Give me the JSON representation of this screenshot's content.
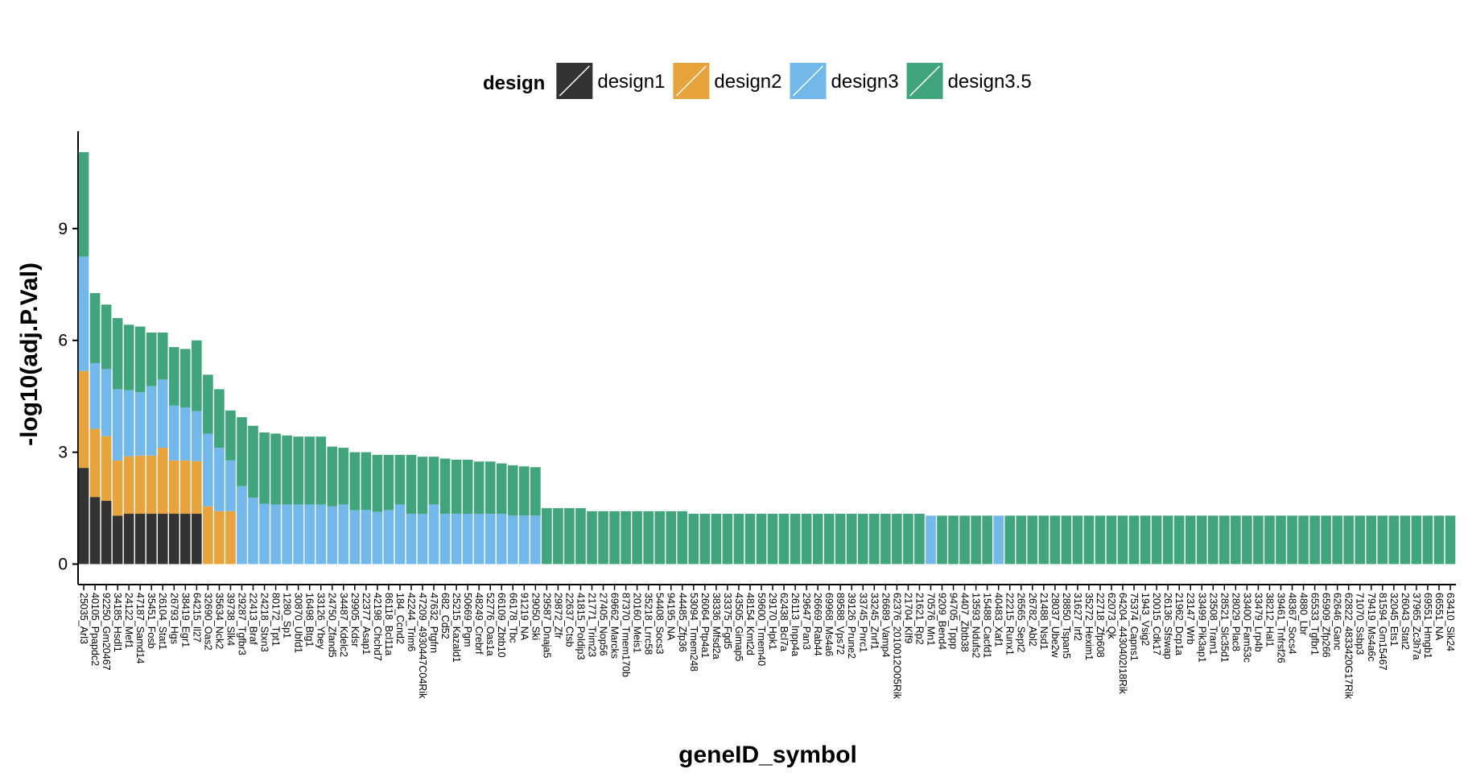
{
  "chart_data": {
    "type": "stacked_bar",
    "x_label": "geneID_symbol",
    "y_label": "-log10(adj.P.Val)",
    "legend_title": "design",
    "legend_position": "top",
    "ylim": [
      -0.55,
      11.61
    ],
    "yticks": [
      0,
      3,
      6,
      9
    ],
    "grid": false,
    "categories": [
      "25035_Arl3",
      "40105_Ppapdc2",
      "92250_Gm20467",
      "34185_Hsdl1",
      "24122_Mef1",
      "47187_Samd14",
      "35451_Fosb",
      "26104_Stat1",
      "26793_Hgs",
      "38419_Egr1",
      "64215_Il27",
      "32690_Oas2",
      "35634_Nck2",
      "39738_Slk4",
      "29287_Tgfbr3",
      "22413_Braf",
      "24218_Stxn3",
      "80172_Tpt1",
      "1280_Sp1",
      "30870_Ubfd1",
      "16498_Btg1",
      "33126_Ybey",
      "24750_Zfand5",
      "34487_Kdelc2",
      "29905_Kdsr",
      "22377_Asap1",
      "42198_Chchd7",
      "86118_Bcl11a",
      "184_Ccnd2",
      "42244_Trim6",
      "47209_4930447C04Rik",
      "47632_Ptgfrn",
      "682_Cd52",
      "25215_Kazald1",
      "50669_Pgm",
      "48249_Crebrf",
      "52776_Oas1a",
      "66109_Zbtb10",
      "66178_Tbc",
      "91219_NA",
      "29050_Ski",
      "29587_Dnaja5",
      "29872_Zfr",
      "22637_Ctsb",
      "41815_Poldip3",
      "21771_Trim23",
      "27405_Nop56",
      "69662_Marcks",
      "87370_Tmem170b",
      "20160_Meis1",
      "35218_Lrrc58",
      "54408_Socs3",
      "94195_NA",
      "44485_Zfp36",
      "53094_Tmem248",
      "26064_Ptp4a1",
      "38336_Mfsd2a",
      "33375_Fgd5",
      "43505_Gimap5",
      "48154_Kmt2d",
      "59600_Tmem40",
      "29170_Hpk1",
      "62438_Bcl7a",
      "26113_Inpp4a",
      "29647_Pan3",
      "26669_Rab44",
      "69968_Ms4a6",
      "89588_Vps72",
      "39126_Prune2",
      "33745_Pnrc1",
      "33245_Znrf1",
      "26689_Vamp4",
      "62376_2010012O05Rik",
      "21704_Klf9",
      "21621_Rp2",
      "70576_Mn1",
      "9209_Bend4",
      "94705_Tppp",
      "4407_Zbtb38",
      "13593_Ndufs2",
      "15488_Cacfd1",
      "40483_Xaf1",
      "22215_Runx1",
      "26565_Sept2",
      "26782_Abl2",
      "21488_Nsd1",
      "28037_Ube2w",
      "28850_Tspan5",
      "31627_Irf2",
      "35272_Hexim1",
      "22718_Zfp608",
      "62073_Qk",
      "64204_4430402I18Rik",
      "75374_Capns1",
      "1943_Vsig2",
      "20015_Cdk17",
      "26136_Sfswap",
      "21962_Dcp1a",
      "23147_Wrb",
      "33499_Pik3ap1",
      "23508_Tram1",
      "28521_Slc35d1",
      "28029_Plac8",
      "33400_Fam53c",
      "33479_Lrp4b",
      "38212_Hal1",
      "39461_Tnfrsf26",
      "48367_Socs4",
      "4880_Lbr",
      "65533_Tgfbr1",
      "65909_Zfp266",
      "62646_Ganc",
      "62822_4833420G17Rik",
      "71070_Ssbp3",
      "79419_Ms4a6c",
      "81594_Gm15467",
      "32045_Ets1",
      "26043_Stat2",
      "37965_Zc3h7a",
      "69551_Hmgb1",
      "66551_NA",
      "63410_Sik24"
    ],
    "series": [
      {
        "name": "design1",
        "color": "#333333",
        "values": [
          2.58,
          1.8,
          1.7,
          1.3,
          1.35,
          1.35,
          1.35,
          1.35,
          1.35,
          1.35,
          1.35,
          null,
          null,
          null,
          null,
          null,
          null,
          null,
          null,
          null,
          null,
          null,
          null,
          null,
          null,
          null,
          null,
          null,
          null,
          null,
          null,
          null,
          null,
          null,
          null,
          null,
          null,
          null,
          null,
          null,
          null,
          null,
          null,
          null,
          null,
          null,
          null,
          null,
          null,
          null,
          null,
          null,
          null,
          null,
          null,
          null,
          null,
          null,
          null,
          null,
          null,
          null,
          null,
          null,
          null,
          null,
          null,
          null,
          null,
          null,
          null,
          null,
          null,
          null,
          null,
          null,
          null,
          null,
          null,
          null,
          null,
          null,
          null,
          null,
          null,
          null,
          null,
          null,
          null,
          null,
          null,
          null,
          null,
          null,
          null,
          null,
          null,
          null,
          null,
          null,
          null,
          null,
          null,
          null,
          null,
          null,
          null,
          null,
          null,
          null,
          null,
          null,
          null,
          null,
          null,
          null,
          null,
          null,
          null,
          null,
          null,
          null
        ]
      },
      {
        "name": "design2",
        "color": "#E8A43C",
        "values": [
          2.6,
          1.83,
          1.73,
          1.48,
          1.54,
          1.56,
          1.56,
          1.77,
          1.43,
          1.43,
          1.41,
          1.55,
          1.42,
          1.42,
          null,
          null,
          null,
          null,
          null,
          null,
          null,
          null,
          null,
          null,
          null,
          null,
          null,
          null,
          null,
          null,
          null,
          null,
          null,
          null,
          null,
          null,
          null,
          null,
          null,
          null,
          null,
          null,
          null,
          null,
          null,
          null,
          null,
          null,
          null,
          null,
          null,
          null,
          null,
          null,
          null,
          null,
          null,
          null,
          null,
          null,
          null,
          null,
          null,
          null,
          null,
          null,
          null,
          null,
          null,
          null,
          null,
          null,
          null,
          null,
          null,
          null,
          null,
          null,
          null,
          null,
          null,
          null,
          null,
          null,
          null,
          null,
          null,
          null,
          null,
          null,
          null,
          null,
          null,
          null,
          null,
          null,
          null,
          null,
          null,
          null,
          null,
          null,
          null,
          null,
          null,
          null,
          null,
          null,
          null,
          null,
          null,
          null,
          null,
          null,
          null,
          null,
          null,
          null,
          null,
          null,
          null,
          null
        ]
      },
      {
        "name": "design3",
        "color": "#72B8EA",
        "values": [
          3.07,
          1.76,
          1.8,
          1.91,
          1.77,
          1.7,
          1.86,
          1.83,
          1.47,
          1.42,
          1.34,
          1.95,
          1.7,
          1.36,
          2.09,
          1.78,
          1.62,
          1.6,
          1.6,
          1.6,
          1.6,
          1.6,
          1.55,
          1.6,
          1.45,
          1.45,
          1.4,
          1.45,
          1.6,
          1.35,
          1.35,
          1.6,
          1.35,
          1.35,
          1.35,
          1.35,
          1.35,
          1.35,
          1.3,
          1.3,
          1.3,
          null,
          null,
          null,
          null,
          null,
          null,
          null,
          null,
          null,
          null,
          null,
          null,
          null,
          null,
          null,
          null,
          null,
          null,
          null,
          null,
          null,
          null,
          null,
          null,
          null,
          null,
          null,
          null,
          null,
          null,
          null,
          null,
          null,
          null,
          1.3,
          null,
          null,
          null,
          null,
          null,
          1.3,
          null,
          null,
          null,
          null,
          null,
          null,
          null,
          null,
          null,
          null,
          null,
          null,
          null,
          null,
          null,
          null,
          null,
          null,
          null,
          null,
          null,
          null,
          null,
          null,
          null,
          null,
          null,
          null,
          null,
          null,
          null,
          null,
          null,
          null,
          null,
          null,
          null,
          null,
          null,
          null
        ]
      },
      {
        "name": "design3.5",
        "color": "#40A57C",
        "values": [
          2.8,
          1.88,
          1.73,
          1.91,
          1.76,
          1.76,
          1.44,
          1.26,
          1.57,
          1.57,
          1.9,
          1.58,
          1.57,
          1.34,
          1.85,
          1.93,
          1.91,
          1.9,
          1.85,
          1.82,
          1.82,
          1.82,
          1.6,
          1.52,
          1.55,
          1.55,
          1.53,
          1.48,
          1.33,
          1.58,
          1.53,
          1.28,
          1.48,
          1.45,
          1.45,
          1.4,
          1.4,
          1.35,
          1.35,
          1.32,
          1.3,
          1.5,
          1.5,
          1.5,
          1.5,
          1.42,
          1.42,
          1.42,
          1.42,
          1.42,
          1.42,
          1.42,
          1.42,
          1.42,
          1.35,
          1.35,
          1.35,
          1.35,
          1.35,
          1.35,
          1.35,
          1.35,
          1.35,
          1.35,
          1.35,
          1.35,
          1.35,
          1.35,
          1.35,
          1.35,
          1.35,
          1.35,
          1.35,
          1.35,
          1.35,
          null,
          1.3,
          1.3,
          1.3,
          1.3,
          1.3,
          null,
          1.3,
          1.3,
          1.3,
          1.3,
          1.3,
          1.3,
          1.3,
          1.3,
          1.3,
          1.3,
          1.3,
          1.3,
          1.3,
          1.3,
          1.3,
          1.3,
          1.3,
          1.3,
          1.3,
          1.3,
          1.3,
          1.3,
          1.3,
          1.3,
          1.3,
          1.3,
          1.3,
          1.3,
          1.3,
          1.3,
          1.3,
          1.3,
          1.3,
          1.3,
          1.3,
          1.3,
          1.3,
          1.3,
          1.3,
          1.3
        ]
      }
    ]
  }
}
